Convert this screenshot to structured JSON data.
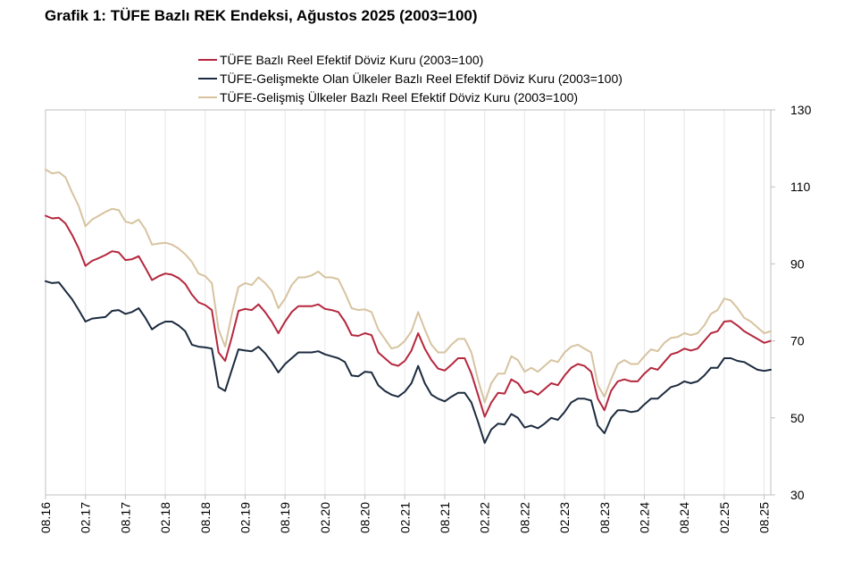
{
  "title": "Grafik 1: TÜFE Bazlı REK Endeksi, Ağustos 2025 (2003=100)",
  "chart_data": {
    "type": "line",
    "title": "Grafik 1: TÜFE Bazlı REK Endeksi, Ağustos 2025 (2003=100)",
    "xlabel": "",
    "ylabel": "",
    "ylim": [
      30,
      130
    ],
    "yticks": [
      30,
      50,
      70,
      90,
      110,
      130
    ],
    "x_start": "2016-08",
    "x_end": "2025-08",
    "x_tick_labels": [
      "08.16",
      "02.17",
      "08.17",
      "02.18",
      "08.18",
      "02.19",
      "08.19",
      "02.20",
      "08.20",
      "02.21",
      "08.21",
      "02.22",
      "08.22",
      "02.23",
      "08.23",
      "02.24",
      "08.24",
      "02.25",
      "08.25"
    ],
    "grid": "vertical",
    "legend_position": "top",
    "series": [
      {
        "name": "TÜFE  Bazlı Reel Efektif Döviz Kuru (2003=100)",
        "color": "#b5273d",
        "values": [
          102.5,
          101.8,
          102,
          100.5,
          97.5,
          94,
          89.5,
          90.8,
          91.5,
          92.3,
          93.3,
          93,
          91,
          91.2,
          92,
          89,
          85.8,
          86.8,
          87.5,
          87.2,
          86.3,
          84.8,
          82,
          80,
          79.3,
          78,
          67,
          64.8,
          71,
          77.8,
          78.3,
          78,
          79.5,
          77.5,
          75,
          72,
          75,
          77.5,
          79,
          79,
          79,
          79.5,
          78.3,
          78,
          77.5,
          75,
          71.5,
          71.3,
          72,
          71.5,
          67,
          65.5,
          64,
          63.5,
          64.8,
          67.5,
          72,
          68,
          65,
          62.8,
          62.3,
          63.8,
          65.5,
          65.5,
          61.5,
          56,
          50.3,
          54,
          56.5,
          56.3,
          60,
          59,
          56.5,
          57,
          56,
          57.5,
          59,
          58.5,
          61,
          63,
          64,
          63.5,
          62,
          55,
          52,
          57,
          59.5,
          60,
          59.5,
          59.5,
          61.5,
          63,
          62.5,
          64.5,
          66.5,
          67,
          68,
          67.5,
          68,
          70,
          72,
          72.5,
          75,
          75.2,
          74,
          72.5,
          71.5,
          70.5,
          69.5,
          70
        ]
      },
      {
        "name": "TÜFE-Gelişmekte Olan Ülkeler Bazlı Reel Efektif Döviz Kuru (2003=100)",
        "color": "#1c2b3e",
        "values": [
          85.5,
          85,
          85.2,
          83,
          80.8,
          78,
          75,
          75.8,
          76,
          76.2,
          77.8,
          78,
          77,
          77.5,
          78.5,
          76,
          73,
          74.2,
          75,
          75,
          74,
          72.5,
          69,
          68.5,
          68.3,
          68,
          58,
          57,
          62.5,
          67.8,
          67.5,
          67.3,
          68.5,
          66.8,
          64.5,
          61.8,
          64,
          65.5,
          67,
          67,
          67,
          67.3,
          66.5,
          66,
          65.5,
          64.5,
          61,
          60.8,
          62,
          61.8,
          58.5,
          57,
          56,
          55.5,
          56.8,
          59,
          63.5,
          59,
          56,
          55,
          54.3,
          55.5,
          56.5,
          56.5,
          54,
          49,
          43.5,
          47,
          48.5,
          48.3,
          51,
          50,
          47.5,
          48,
          47.3,
          48.5,
          50,
          49.5,
          51.5,
          54,
          55,
          55,
          54.5,
          48,
          46,
          50,
          52,
          52,
          51.5,
          51.8,
          53.5,
          55,
          55,
          56.5,
          58,
          58.5,
          59.5,
          59,
          59.5,
          61,
          63,
          63,
          65.5,
          65.5,
          64.8,
          64.5,
          63.5,
          62.5,
          62.2,
          62.5
        ]
      },
      {
        "name": "TÜFE-Gelişmiş Ülkeler Bazlı Reel Efektif Döviz Kuru (2003=100)",
        "color": "#d7c3a0",
        "values": [
          114.5,
          113.5,
          113.8,
          112.5,
          108.5,
          105,
          99.8,
          101.5,
          102.5,
          103.5,
          104.3,
          104,
          101,
          100.5,
          101.5,
          99,
          95,
          95.3,
          95.5,
          95,
          94,
          92.5,
          90.5,
          87.5,
          86.8,
          85,
          73,
          68.5,
          77,
          84,
          85,
          84.5,
          86.5,
          85,
          83,
          78.5,
          81,
          84.5,
          86.5,
          86.5,
          87,
          88,
          86.5,
          86.5,
          86,
          82.5,
          78.5,
          78,
          78.2,
          77.5,
          73,
          70.5,
          68,
          68.5,
          70,
          72.5,
          77.5,
          73,
          69,
          67,
          67,
          69,
          70.5,
          70.5,
          67,
          60,
          54,
          59,
          61.5,
          61.5,
          66,
          65,
          62,
          63,
          62,
          63.5,
          65,
          64.5,
          67,
          68.5,
          69,
          68,
          67,
          58.5,
          55.5,
          60,
          64,
          65,
          64,
          64,
          66,
          67.8,
          67.3,
          69.5,
          70.8,
          71,
          72,
          71.5,
          72,
          74,
          77,
          78,
          81,
          80.5,
          78.5,
          76,
          75,
          73.5,
          72,
          72.5
        ]
      }
    ]
  }
}
